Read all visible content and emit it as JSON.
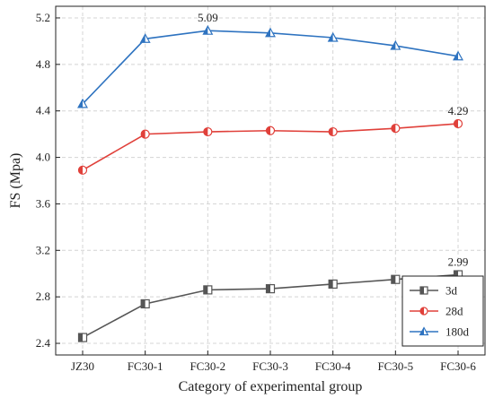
{
  "chart_data": {
    "type": "line",
    "categories": [
      "JZ30",
      "FC30-1",
      "FC30-2",
      "FC30-3",
      "FC30-4",
      "FC30-5",
      "FC30-6"
    ],
    "xlabel": "Category of experimental group",
    "ylabel": "FS (Mpa)",
    "ylim": [
      2.3,
      5.3
    ],
    "yticks": [
      2.4,
      2.8,
      3.2,
      3.6,
      4.0,
      4.4,
      4.8,
      5.2
    ],
    "ytick_labels": [
      "2.4",
      "2.8",
      "3.2",
      "3.6",
      "4.0",
      "4.4",
      "4.8",
      "5.2"
    ],
    "grid": true,
    "legend_position": "bottom-right",
    "series": [
      {
        "name": "3d",
        "color": "#555555",
        "marker": "square-half",
        "values": [
          2.45,
          2.74,
          2.86,
          2.87,
          2.91,
          2.95,
          2.99
        ]
      },
      {
        "name": "28d",
        "color": "#e0403a",
        "marker": "circle-half",
        "values": [
          3.89,
          4.2,
          4.22,
          4.23,
          4.22,
          4.25,
          4.29
        ]
      },
      {
        "name": "180d",
        "color": "#2e73c0",
        "marker": "triangle-half",
        "values": [
          4.46,
          5.02,
          5.09,
          5.07,
          5.03,
          4.96,
          4.87
        ]
      }
    ],
    "annotations": [
      {
        "series": 2,
        "index": 2,
        "text": "5.09"
      },
      {
        "series": 1,
        "index": 6,
        "text": "4.29"
      },
      {
        "series": 0,
        "index": 6,
        "text": "2.99"
      }
    ]
  }
}
